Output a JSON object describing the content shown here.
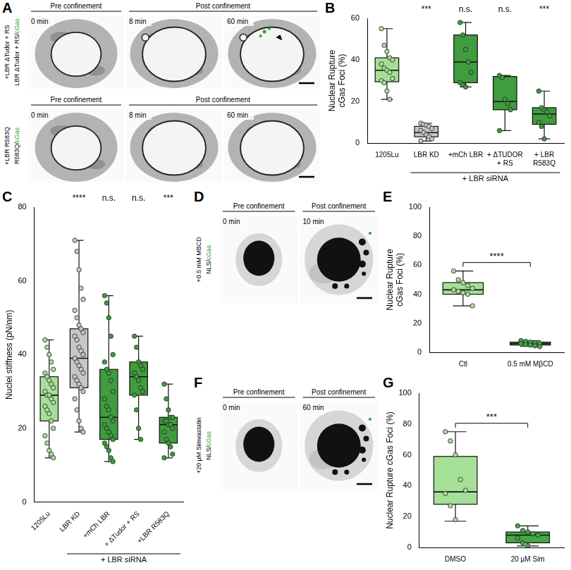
{
  "images": [
    {
      "panel": "A",
      "rows": [
        {
          "label": "+LBR ΔTudor + RS",
          "channel": "LBR ΔTudor + RS/cGas",
          "headers": [
            "Pre confinement",
            "Post confinement"
          ],
          "times": [
            "0 min",
            "8 min",
            "60 min"
          ]
        },
        {
          "label": "+LBR R583Q",
          "channel": "R583Q/cGas",
          "headers": [
            "Pre confinement",
            "Post confinement"
          ],
          "times": [
            "0 min",
            "8 min",
            "60 min"
          ]
        }
      ]
    },
    {
      "panel": "D",
      "label": "+0.5 mM MBCD",
      "channel": "NLS/cGas",
      "headers": [
        "Pre confinement",
        "Post confinement"
      ],
      "times": [
        "0 min",
        "10 min"
      ]
    },
    {
      "panel": "F",
      "label": "+20 µM Simvastatin",
      "channel": "NLS/cGas",
      "headers": [
        "Pre confinement",
        "Post confinement"
      ],
      "times": [
        "0 min",
        "60 min"
      ]
    }
  ],
  "chart_data": [
    {
      "panel": "B",
      "type": "box",
      "ylabel": "Nuclear Rupture cGas Foci (%)",
      "categories": [
        "1205Lu",
        "LBR KD",
        "+mCh LBR",
        "+ ΔTUDOR + RS",
        "+ LBR R583Q"
      ],
      "colors": [
        "#a6df98",
        "#c6c6c6",
        "#3f9c3f",
        "#3f9c3f",
        "#3f9c3f"
      ],
      "stats": {
        "min": [
          21,
          1,
          27,
          6,
          2
        ],
        "q1": [
          29.5,
          3,
          29,
          16,
          9
        ],
        "median": [
          35,
          5,
          39,
          20,
          14
        ],
        "q3": [
          41,
          8,
          52,
          32,
          17
        ],
        "max": [
          55,
          9.5,
          58,
          32.5,
          25
        ]
      },
      "points": [
        [
          55,
          47,
          44,
          41,
          40,
          38,
          36,
          35,
          34,
          31,
          30,
          29,
          25,
          21
        ],
        [
          9.5,
          9,
          8.5,
          8,
          7,
          6,
          5,
          4,
          3,
          2,
          1
        ],
        [
          58,
          52,
          45,
          39,
          34,
          29,
          28,
          27
        ],
        [
          32.5,
          31.5,
          21,
          19,
          16,
          6
        ],
        [
          25,
          17,
          16,
          15,
          13,
          10,
          8,
          2
        ]
      ],
      "significance": [
        null,
        "***",
        "n.s.",
        "n.s.",
        "***"
      ],
      "group": {
        "label": "+ LBR siRNA",
        "categories": [
          "LBR KD",
          "+mCh LBR",
          "+ ΔTUDOR + RS",
          "+ LBR R583Q"
        ]
      },
      "ylim": [
        0,
        60
      ],
      "yticks": [
        0,
        20,
        40,
        60
      ],
      "grid": false
    },
    {
      "panel": "C",
      "type": "box",
      "ylabel": "Nuclei stiffness (pN/nm)",
      "categories": [
        "1205Lu",
        "LBR KD",
        "+mCh LBR",
        "+ ΔTudor + RS",
        "+LBR R583Q"
      ],
      "colors": [
        "#a6df98",
        "#c6c6c6",
        "#3f9c3f",
        "#3f9c3f",
        "#3f9c3f"
      ],
      "stats": {
        "min": [
          12,
          19,
          11,
          17,
          12
        ],
        "q1": [
          22,
          31,
          17,
          29,
          16
        ],
        "median": [
          29,
          39,
          23,
          34,
          21
        ],
        "q3": [
          34,
          47,
          36,
          38,
          23
        ],
        "max": [
          44,
          71,
          56,
          45,
          32
        ]
      },
      "points": [
        [
          44,
          42,
          40,
          38,
          36,
          35,
          34,
          33,
          32,
          31,
          30,
          29,
          29,
          28,
          27,
          26,
          25,
          24,
          22,
          20,
          18,
          16,
          14,
          13,
          12
        ],
        [
          71,
          68,
          63,
          58,
          55,
          52,
          50,
          48,
          47,
          46,
          45,
          44,
          42,
          41,
          40,
          39,
          38,
          37,
          36,
          35,
          34,
          33,
          32,
          31,
          30,
          28,
          25,
          22,
          20,
          19
        ],
        [
          56,
          54,
          50,
          45,
          40,
          38,
          36,
          35,
          33,
          30,
          28,
          26,
          25,
          23,
          22,
          21,
          20,
          19,
          18,
          17,
          16,
          15,
          14,
          12,
          11
        ],
        [
          45,
          42,
          38,
          37,
          36,
          35,
          34,
          33,
          31,
          30,
          29,
          25,
          20,
          17
        ],
        [
          32,
          28,
          25,
          23,
          23,
          22,
          22,
          21,
          21,
          20,
          19,
          17,
          16,
          15,
          13,
          12
        ]
      ],
      "significance": [
        null,
        "****",
        "n.s.",
        "n.s.",
        "***"
      ],
      "group": {
        "label": "+ LBR siRNA",
        "categories": [
          "LBR KD",
          "+mCh LBR",
          "+ ΔTudor + RS",
          "+LBR R583Q"
        ]
      },
      "ylim": [
        0,
        80
      ],
      "yticks": [
        0,
        20,
        40,
        60,
        80
      ],
      "grid": false
    },
    {
      "panel": "E",
      "type": "box",
      "ylabel": "Nuclear Rupture cGas Foci (%)",
      "categories": [
        "Ctl",
        "0.5 mM MβCD"
      ],
      "colors": [
        "#a6df98",
        "#45a845"
      ],
      "stats": {
        "min": [
          32,
          4
        ],
        "q1": [
          40,
          5
        ],
        "median": [
          43,
          6
        ],
        "q3": [
          48,
          7
        ],
        "max": [
          56,
          8
        ]
      },
      "points": [
        [
          56,
          50,
          48,
          46,
          44,
          43,
          42,
          41,
          40,
          32
        ],
        [
          8,
          7.5,
          7,
          6.5,
          6,
          6,
          5.5,
          5,
          4.5,
          4
        ]
      ],
      "comparison": {
        "label": "****",
        "categories": [
          "Ctl",
          "0.5 mM MβCD"
        ]
      },
      "ylim": [
        0,
        100
      ],
      "yticks": [
        0,
        20,
        40,
        60,
        80,
        100
      ],
      "grid": false
    },
    {
      "panel": "G",
      "type": "box",
      "ylabel": "Nuclear Rupture cGas Foci (%)",
      "categories": [
        "DMSO",
        "20 µM Sim"
      ],
      "colors": [
        "#a6df98",
        "#45a845"
      ],
      "stats": {
        "min": [
          17,
          1
        ],
        "q1": [
          28,
          3
        ],
        "median": [
          36,
          8
        ],
        "q3": [
          59,
          10
        ],
        "max": [
          75,
          14
        ]
      },
      "points": [
        [
          75,
          69,
          60,
          44,
          37,
          35,
          27,
          18
        ],
        [
          14,
          11,
          10,
          9,
          8,
          6,
          3,
          1
        ]
      ],
      "comparison": {
        "label": "***",
        "categories": [
          "DMSO",
          "20 µM Sim"
        ]
      },
      "ylim": [
        0,
        100
      ],
      "yticks": [
        0,
        20,
        40,
        60,
        80,
        100
      ],
      "grid": false
    }
  ]
}
